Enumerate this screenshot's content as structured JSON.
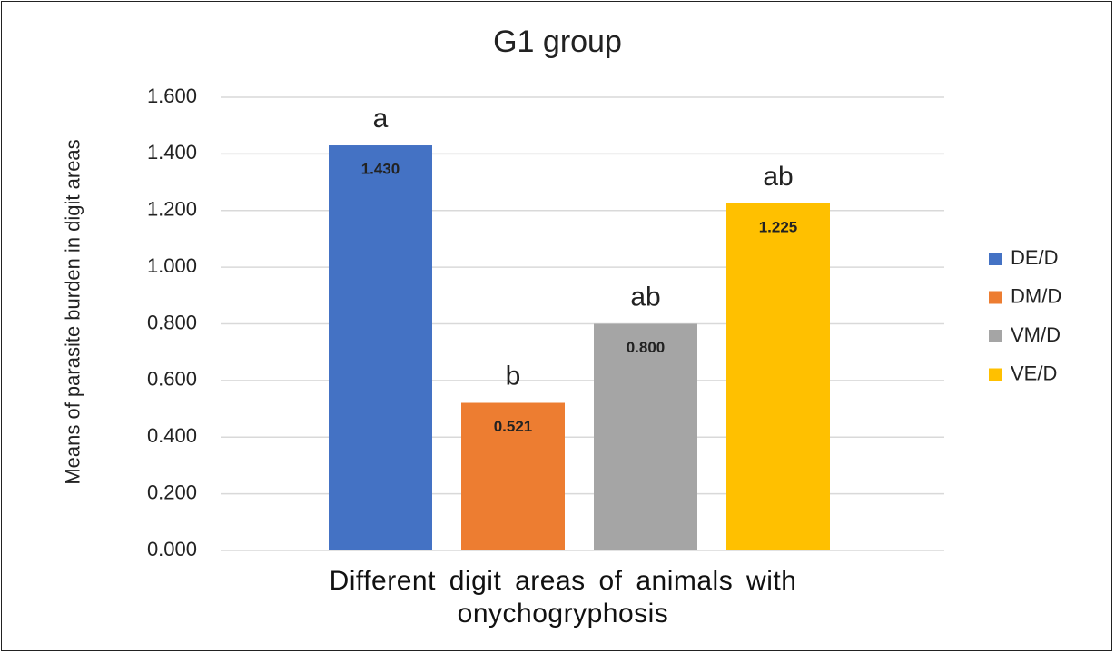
{
  "chart_data": {
    "type": "bar",
    "title": "G1 group",
    "x_label": "Different digit areas of animals with onychogryphosis",
    "y_label": "Means of parasite burden in digit areas",
    "categories": [
      null
    ],
    "series": [
      {
        "name": "DE/D",
        "color": "#4472c4",
        "values": [
          1.43
        ],
        "value_labels": [
          "1.430"
        ]
      },
      {
        "name": "DM/D",
        "color": "#ed7d31",
        "values": [
          0.521
        ],
        "value_labels": [
          "0.521"
        ]
      },
      {
        "name": "VM/D",
        "color": "#a5a5a5",
        "values": [
          0.8
        ],
        "value_labels": [
          "0.800"
        ]
      },
      {
        "name": "VE/D",
        "color": "#ffc000",
        "values": [
          1.225
        ],
        "value_labels": [
          "1.225"
        ]
      }
    ],
    "annotations": [
      "a",
      "b",
      "ab",
      "ab"
    ],
    "ylim": [
      0,
      1.6
    ],
    "yticks": [
      {
        "value": 0,
        "label": "0.000"
      },
      {
        "value": 0.2,
        "label": "0.200"
      },
      {
        "value": 0.4,
        "label": "0.400"
      },
      {
        "value": 0.6,
        "label": "0.600"
      },
      {
        "value": 0.8,
        "label": "0.800"
      },
      {
        "value": 1,
        "label": "1.000"
      },
      {
        "value": 1.2,
        "label": "1.200"
      },
      {
        "value": 1.4,
        "label": "1.400"
      },
      {
        "value": 1.6,
        "label": "1.600"
      }
    ],
    "grid": true,
    "legend": "right"
  }
}
